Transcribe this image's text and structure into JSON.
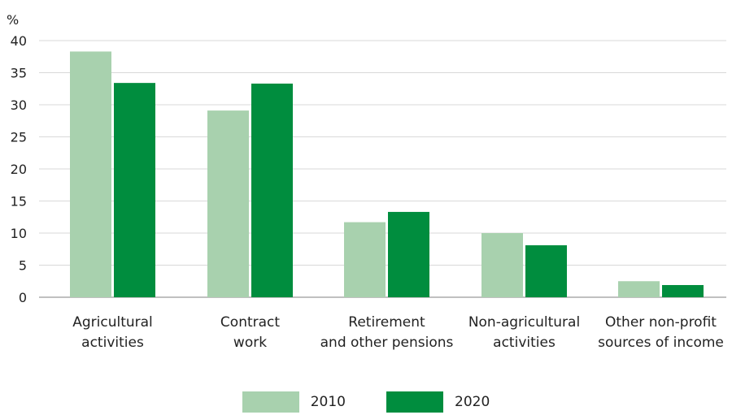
{
  "chart_data": {
    "type": "bar",
    "ylabel": "%",
    "ylim": [
      0,
      40
    ],
    "yticks": [
      0,
      5,
      10,
      15,
      20,
      25,
      30,
      35,
      40
    ],
    "grid": true,
    "legend_position": "bottom",
    "categories": [
      [
        "Agricultural",
        "activities"
      ],
      [
        "Contract",
        "work"
      ],
      [
        "Retirement",
        "and other pensions"
      ],
      [
        "Non-agricultural",
        "activities"
      ],
      [
        "Other non-profit",
        "sources of income"
      ]
    ],
    "series": [
      {
        "name": "2010",
        "color": "#a8d1ae",
        "values": [
          38.3,
          29.1,
          11.7,
          10.0,
          2.5
        ]
      },
      {
        "name": "2020",
        "color": "#008d3e",
        "values": [
          33.4,
          33.3,
          13.3,
          8.1,
          1.9
        ]
      }
    ]
  }
}
